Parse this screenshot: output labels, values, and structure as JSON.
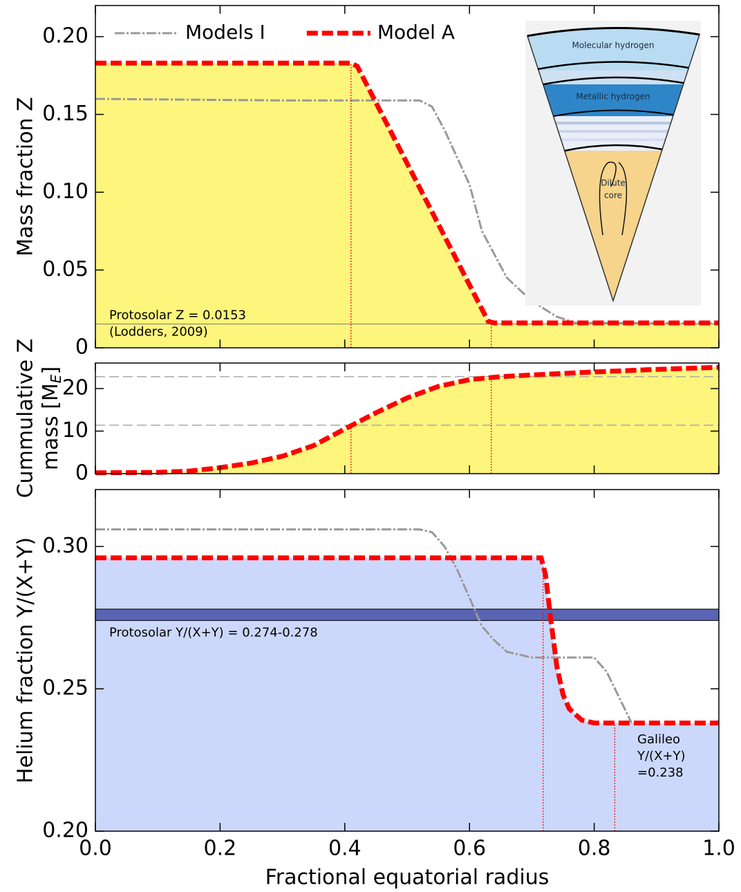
{
  "chart_data": [
    {
      "type": "line",
      "ylabel": "Mass fraction Z",
      "xlim": [
        0,
        1
      ],
      "ylim": [
        0,
        0.22
      ],
      "yticks": [
        0,
        0.05,
        {
          "value": 0.1,
          "label": "0.10"
        },
        0.15,
        {
          "value": 0.2,
          "label": "0.20"
        }
      ],
      "legend": "upper left",
      "series": [
        {
          "name": "Models I",
          "color": "#999999",
          "style": "dashdot",
          "x": [
            0,
            0.3,
            0.52,
            0.54,
            0.56,
            0.6,
            0.62,
            0.66,
            0.7,
            0.74,
            0.77,
            1.0
          ],
          "values": [
            0.16,
            0.159,
            0.159,
            0.155,
            0.14,
            0.105,
            0.075,
            0.045,
            0.03,
            0.02,
            0.016,
            0.016
          ]
        },
        {
          "name": "Model A",
          "color": "#ff0000",
          "style": "dashed",
          "fill": "#fdf57c",
          "x": [
            0,
            0.41,
            0.42,
            0.63,
            0.64,
            1.0
          ],
          "values": [
            0.183,
            0.183,
            0.181,
            0.017,
            0.016,
            0.016
          ]
        }
      ],
      "reference_line": {
        "value": 0.0153,
        "color": "#777777",
        "label": "Protosolar Z = 0.0153",
        "note": "(Lodders, 2009)"
      },
      "vlines": [
        0.41,
        0.635
      ],
      "vline_color": "#ff0000",
      "inset": {
        "labels": [
          "Molecular hydrogen",
          "Metallic hydrogen",
          "Dilute",
          "core"
        ]
      }
    },
    {
      "type": "line",
      "ylabel": [
        "Cummulative Z",
        "mass [M",
        "E",
        "]"
      ],
      "xlim": [
        0,
        1
      ],
      "ylim": [
        0,
        26
      ],
      "yticks": [
        0,
        10,
        20
      ],
      "series": [
        {
          "color": "#ff0000",
          "style": "dashed",
          "fill": "#fdf57c",
          "x": [
            0,
            0.1,
            0.15,
            0.2,
            0.25,
            0.3,
            0.35,
            0.4,
            0.45,
            0.5,
            0.55,
            0.6,
            0.65,
            0.7,
            0.8,
            0.9,
            1.0
          ],
          "values": [
            0.2,
            0.3,
            0.6,
            1.4,
            2.5,
            4.1,
            6.6,
            10.5,
            14.3,
            17.8,
            20.5,
            22.1,
            22.8,
            23.2,
            23.9,
            24.5,
            25.0
          ]
        }
      ],
      "hlines": [
        11.4,
        22.8
      ],
      "hline_color": "#aaaaaa",
      "vlines": [
        0.41,
        0.635
      ],
      "vline_color": "#ff0000"
    },
    {
      "type": "line",
      "ylabel": "Helium fraction Y/(X+Y)",
      "xlabel": "Fractional equatorial radius",
      "xlim": [
        0,
        1
      ],
      "ylim": [
        0.2,
        0.32
      ],
      "xticks": [
        {
          "value": 0,
          "label": "0.0"
        },
        0.2,
        0.4,
        0.6,
        0.8,
        {
          "value": 1,
          "label": "1.0"
        }
      ],
      "yticks": [
        {
          "value": 0.2,
          "label": "0.20"
        },
        0.25,
        {
          "value": 0.3,
          "label": "0.30"
        }
      ],
      "series": [
        {
          "color": "#999999",
          "style": "dashdot",
          "x": [
            0,
            0.3,
            0.52,
            0.54,
            0.56,
            0.58,
            0.6,
            0.62,
            0.64,
            0.66,
            0.7,
            0.8,
            0.82,
            0.86
          ],
          "values": [
            0.306,
            0.306,
            0.306,
            0.305,
            0.3,
            0.292,
            0.282,
            0.272,
            0.267,
            0.263,
            0.261,
            0.261,
            0.256,
            0.238
          ]
        },
        {
          "color": "#ff0000",
          "style": "dashed",
          "fill": "#ccd8fb",
          "x": [
            0,
            0.715,
            0.722,
            0.73,
            0.74,
            0.75,
            0.76,
            0.78,
            0.8,
            1.0
          ],
          "values": [
            0.296,
            0.296,
            0.29,
            0.275,
            0.258,
            0.248,
            0.243,
            0.239,
            0.238,
            0.238
          ]
        }
      ],
      "band": {
        "range": [
          0.274,
          0.278
        ],
        "color": "#5a64b4",
        "label": "Protosolar Y/(X+Y) = 0.274-0.278"
      },
      "annotation": [
        "Galileo",
        "Y/(X+Y)",
        "=0.238"
      ],
      "vlines": [
        0.718,
        0.833
      ],
      "vline_color": "#ff0000"
    }
  ]
}
